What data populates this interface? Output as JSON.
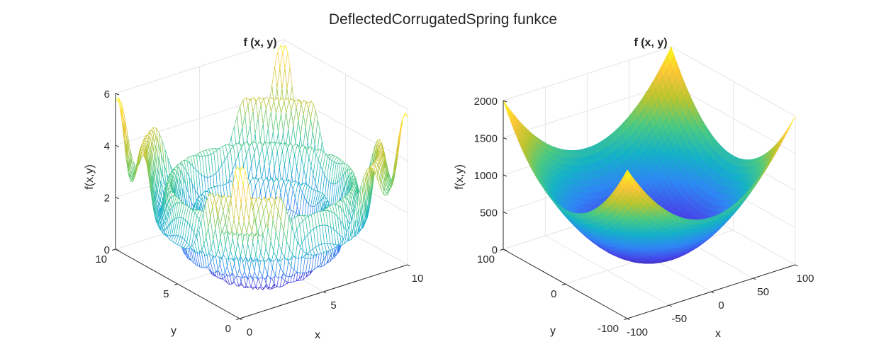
{
  "figure": {
    "title": "DeflectedCorrugatedSpring funkce"
  },
  "chart_data": [
    {
      "type": "mesh",
      "title": "f (x, y)",
      "xlabel": "x",
      "ylabel": "y",
      "zlabel": "f(x,y)",
      "xlim": [
        0,
        10
      ],
      "ylim": [
        0,
        10
      ],
      "zlim": [
        0,
        6
      ],
      "x_ticks": [
        "0",
        "5",
        "10"
      ],
      "y_ticks": [
        "0",
        "5",
        "10"
      ],
      "z_ticks": [
        "0",
        "2",
        "4",
        "6"
      ],
      "function": "DeflectedCorrugatedSpring",
      "grid": true,
      "colormap": "parula"
    },
    {
      "type": "surface",
      "title": "f (x, y)",
      "xlabel": "x",
      "ylabel": "y",
      "zlabel": "f(x,y)",
      "xlim": [
        -100,
        100
      ],
      "ylim": [
        -100,
        100
      ],
      "zlim": [
        0,
        2000
      ],
      "x_ticks": [
        "-100",
        "-50",
        "0",
        "50",
        "100"
      ],
      "y_ticks": [
        "-100",
        "0",
        "100"
      ],
      "z_ticks": [
        "0",
        "500",
        "1000",
        "1500",
        "2000"
      ],
      "function": "DeflectedCorrugatedSpring",
      "grid": true,
      "colormap": "parula"
    }
  ],
  "colors": {
    "parula": [
      "#3e26a8",
      "#4744e8",
      "#2f86f4",
      "#14b2c7",
      "#4bc982",
      "#b8c530",
      "#fcc538",
      "#f9fb15"
    ],
    "axis": "#262626",
    "grid": "#e6e6e6"
  }
}
